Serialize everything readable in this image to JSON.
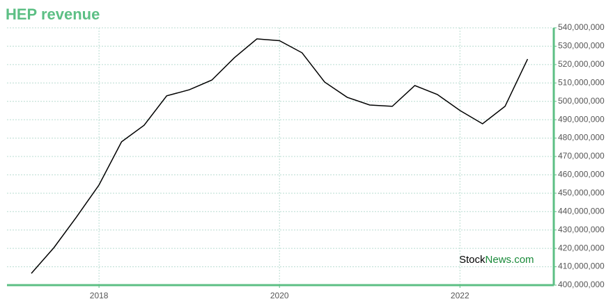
{
  "chart_data": {
    "type": "line",
    "title": "HEP revenue",
    "x": [
      2017.25,
      2017.5,
      2017.75,
      2018,
      2018.25,
      2018.5,
      2018.75,
      2019,
      2019.25,
      2019.5,
      2019.75,
      2020,
      2020.25,
      2020.5,
      2020.75,
      2021,
      2021.25,
      2021.5,
      2021.75,
      2022,
      2022.25,
      2022.5,
      2022.75
    ],
    "series": [
      {
        "name": "HEP revenue",
        "color": "#000000",
        "values": [
          406400000,
          420400000,
          437000000,
          454500000,
          478000000,
          487000000,
          503000000,
          506300000,
          511600000,
          523700000,
          534000000,
          533000000,
          526400000,
          510500000,
          502200000,
          498000000,
          497300000,
          508600000,
          503700000,
          495000000,
          487800000,
          497300000,
          523000000
        ]
      }
    ],
    "xlim": [
      2016.98,
      2023.04
    ],
    "xticks": [
      2018,
      2020,
      2022
    ],
    "ylim": [
      400000000,
      540000000
    ],
    "yticks": [
      {
        "value": 400000000,
        "label": "400,000,000"
      },
      {
        "value": 410000000,
        "label": "410,000,000"
      },
      {
        "value": 420000000,
        "label": "420,000,000"
      },
      {
        "value": 430000000,
        "label": "430,000,000"
      },
      {
        "value": 440000000,
        "label": "440,000,000"
      },
      {
        "value": 450000000,
        "label": "450,000,000"
      },
      {
        "value": 460000000,
        "label": "460,000,000"
      },
      {
        "value": 470000000,
        "label": "470,000,000"
      },
      {
        "value": 480000000,
        "label": "480,000,000"
      },
      {
        "value": 490000000,
        "label": "490,000,000"
      },
      {
        "value": 500000000,
        "label": "500,000,000"
      },
      {
        "value": 510000000,
        "label": "510,000,000"
      },
      {
        "value": 520000000,
        "label": "520,000,000"
      },
      {
        "value": 530000000,
        "label": "530,000,000"
      },
      {
        "value": 540000000,
        "label": "540,000,000"
      }
    ],
    "grid": true,
    "axis_color": "#5cbf84",
    "watermark": [
      "Stock",
      "News.com"
    ]
  }
}
